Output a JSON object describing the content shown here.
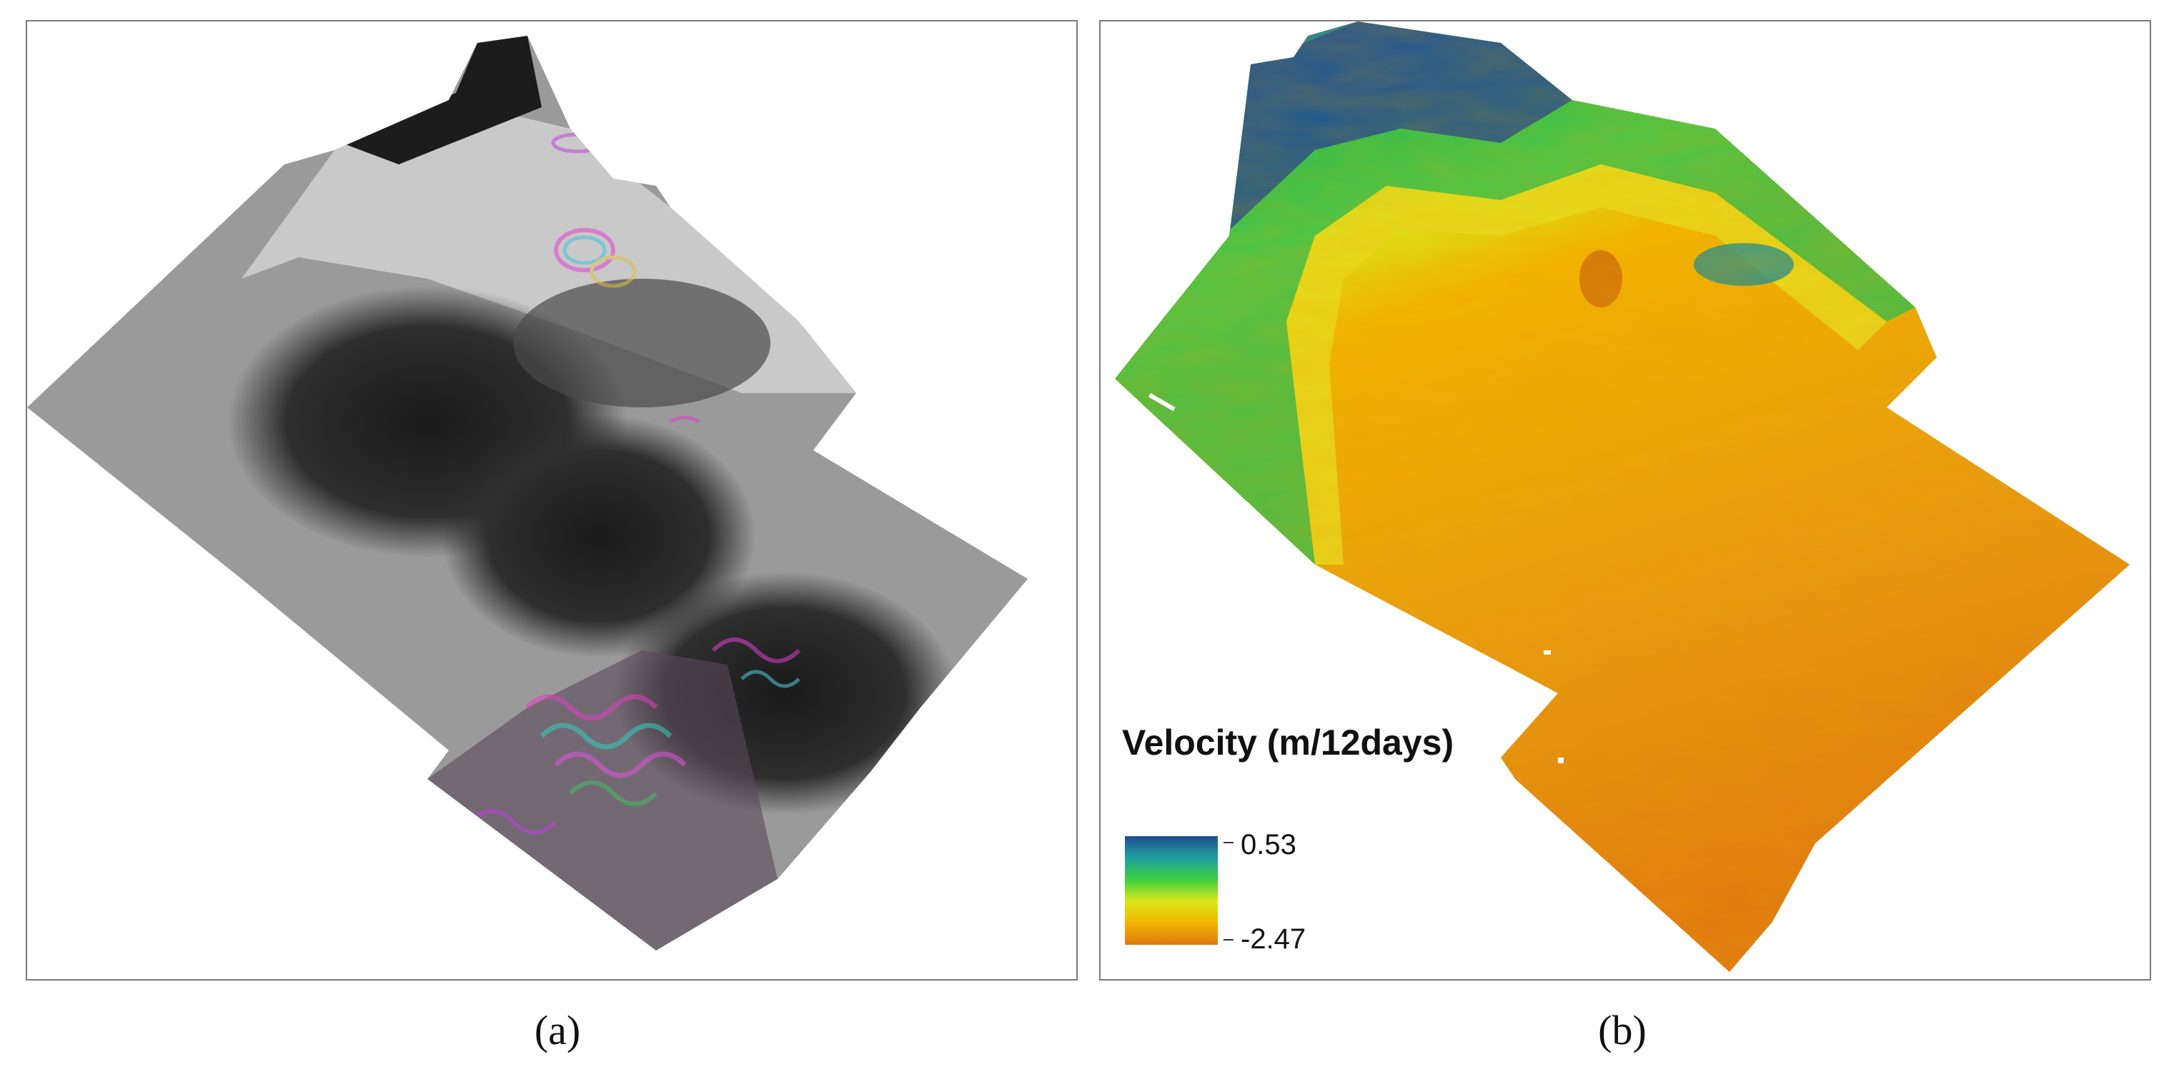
{
  "figure": {
    "panels": [
      {
        "id": "a",
        "caption": "(a)",
        "content": "interferogram"
      },
      {
        "id": "b",
        "caption": "(b)",
        "content": "velocity-map",
        "legend": {
          "title": "Velocity (m/12days)",
          "max_label": "0.53",
          "min_label": "-2.47",
          "max_value": 0.53,
          "min_value": -2.47,
          "colors": [
            "#1f4f8f",
            "#1f9fa0",
            "#3ccf3c",
            "#d9e81a",
            "#f2b400",
            "#e07a10"
          ]
        }
      }
    ]
  }
}
